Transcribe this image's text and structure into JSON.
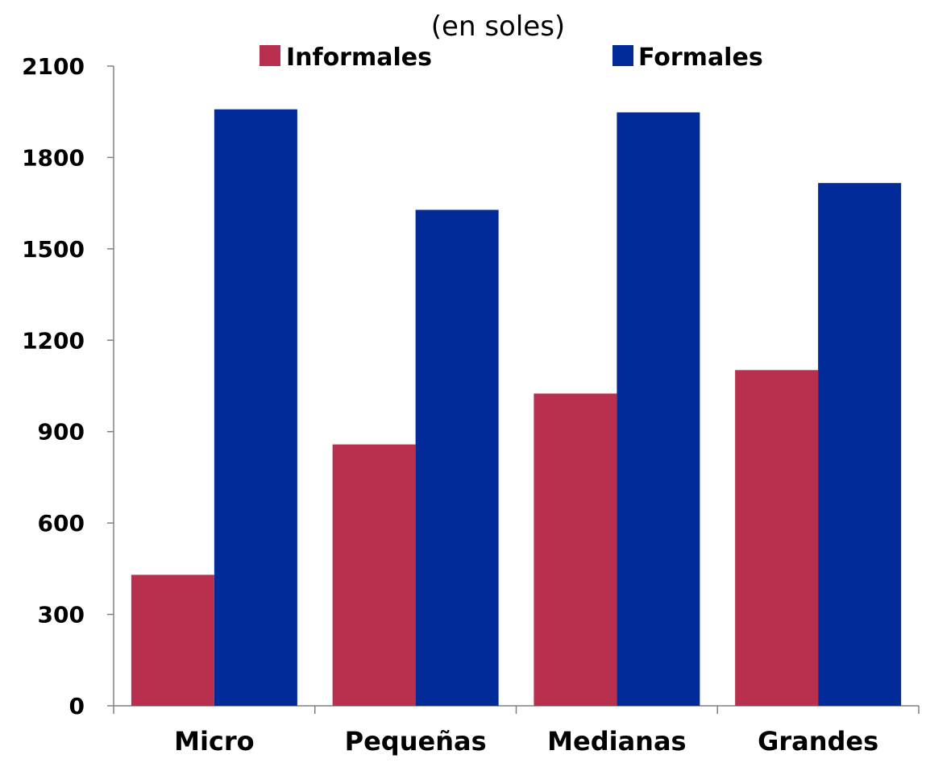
{
  "chart_data": {
    "type": "bar",
    "subtitle": "(en soles)",
    "categories": [
      "Micro",
      "Pequeñas",
      "Medianas",
      "Grandes"
    ],
    "series": [
      {
        "name": "Informales",
        "values": [
          430,
          858,
          1025,
          1102
        ],
        "color": "#B8304E"
      },
      {
        "name": "Formales",
        "values": [
          1958,
          1628,
          1948,
          1716
        ],
        "color": "#002B99"
      }
    ],
    "ylim": [
      0,
      2100
    ],
    "yticks": [
      "0",
      "300",
      "600",
      "900",
      "1200",
      "1500",
      "1800",
      "2100"
    ],
    "grid": false,
    "legend_position": "top"
  }
}
